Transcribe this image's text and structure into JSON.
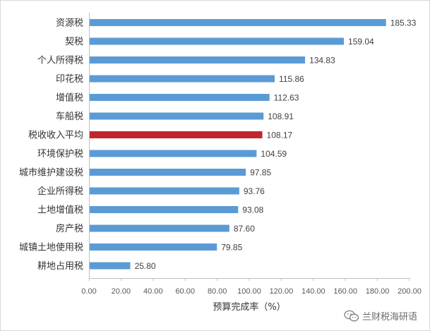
{
  "chart_data": {
    "type": "bar",
    "orientation": "horizontal",
    "categories": [
      "资源税",
      "契税",
      "个人所得税",
      "印花税",
      "增值税",
      "车船税",
      "税收收入平均",
      "环境保护税",
      "城市维护建设税",
      "企业所得税",
      "土地增值税",
      "房产税",
      "城镇土地使用税",
      "耕地占用税"
    ],
    "values": [
      185.33,
      159.04,
      134.83,
      115.86,
      112.63,
      108.91,
      108.17,
      104.59,
      97.85,
      93.76,
      93.08,
      87.6,
      79.85,
      25.8
    ],
    "value_labels": [
      "185.33",
      "159.04",
      "134.83",
      "115.86",
      "112.63",
      "108.91",
      "108.17",
      "104.59",
      "97.85",
      "93.76",
      "93.08",
      "87.60",
      "79.85",
      "25.80"
    ],
    "highlight_index": 6,
    "xlabel": "预算完成率（%）",
    "xlim": [
      0,
      200
    ],
    "x_ticks": [
      "0.00",
      "20.00",
      "40.00",
      "60.00",
      "80.00",
      "100.00",
      "120.00",
      "140.00",
      "160.00",
      "180.00",
      "200.00"
    ],
    "grid": false,
    "colors": {
      "bar": "#5b9bd5",
      "highlight": "#c0272d",
      "axis": "#bfbfbf"
    }
  },
  "watermark": {
    "icon": "wechat-icon",
    "text": "兰财税海研语"
  }
}
